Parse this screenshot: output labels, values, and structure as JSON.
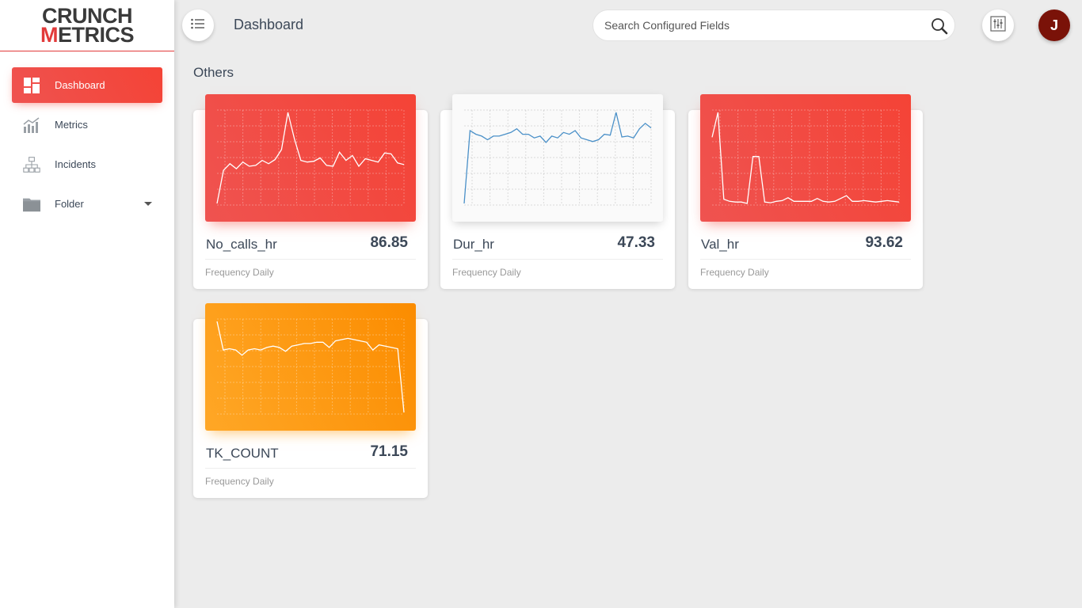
{
  "logo": {
    "line1": "CRUNCH",
    "line2_accent": "M",
    "line2_rest": "ETRICS"
  },
  "sidebar": {
    "items": [
      {
        "label": "Dashboard",
        "icon": "dashboard-icon",
        "active": true
      },
      {
        "label": "Metrics",
        "icon": "bar-chart-icon"
      },
      {
        "label": "Incidents",
        "icon": "hierarchy-icon"
      },
      {
        "label": "Folder",
        "icon": "folder-icon"
      }
    ]
  },
  "header": {
    "title": "Dashboard",
    "search_placeholder": "Search Configured Fields",
    "avatar_initial": "J"
  },
  "section": {
    "title": "Others"
  },
  "colors": {
    "red": "#f44336",
    "orange": "#fb8c00",
    "blue_line": "#4a90c8",
    "avatar": "#7a1208"
  },
  "cards": [
    {
      "name": "No_calls_hr",
      "value": "86.85",
      "frequency": "Frequency Daily",
      "theme": "red"
    },
    {
      "name": "Dur_hr",
      "value": "47.33",
      "frequency": "Frequency Daily",
      "theme": "white"
    },
    {
      "name": "Val_hr",
      "value": "93.62",
      "frequency": "Frequency Daily",
      "theme": "red"
    },
    {
      "name": "TK_COUNT",
      "value": "71.15",
      "frequency": "Frequency Daily",
      "theme": "orange"
    }
  ],
  "chart_data": [
    {
      "type": "line",
      "series": [
        {
          "values": [
            10,
            50,
            58,
            52,
            60,
            55,
            56,
            62,
            58,
            63,
            75,
            120,
            88,
            62,
            60,
            61,
            65,
            56,
            55,
            72,
            62,
            68,
            55,
            64,
            62,
            60,
            71,
            70,
            59,
            57
          ]
        }
      ]
    },
    {
      "type": "line",
      "series": [
        {
          "values": [
            10,
            90,
            86,
            84,
            80,
            84,
            84,
            86,
            88,
            92,
            86,
            86,
            82,
            84,
            77,
            84,
            82,
            88,
            86,
            90,
            82,
            80,
            78,
            80,
            86,
            85,
            110,
            83,
            84,
            82,
            92,
            98,
            93
          ]
        }
      ]
    },
    {
      "type": "line",
      "series": [
        {
          "values": [
            120,
            155,
            33,
            30,
            29,
            29,
            27,
            93,
            93,
            29,
            28,
            30,
            31,
            35,
            30,
            30,
            30,
            30,
            34,
            30,
            29,
            30,
            34,
            38,
            30,
            30,
            31,
            30,
            29,
            30,
            31,
            30,
            29
          ]
        }
      ]
    },
    {
      "type": "line",
      "series": [
        {
          "values": [
            100,
            78,
            79,
            78,
            74,
            78,
            79,
            78,
            80,
            81,
            80,
            77,
            81,
            82,
            83,
            83,
            84,
            84,
            80,
            85,
            86,
            87,
            86,
            85,
            84,
            78,
            82,
            81,
            80,
            79,
            30
          ]
        }
      ]
    }
  ]
}
